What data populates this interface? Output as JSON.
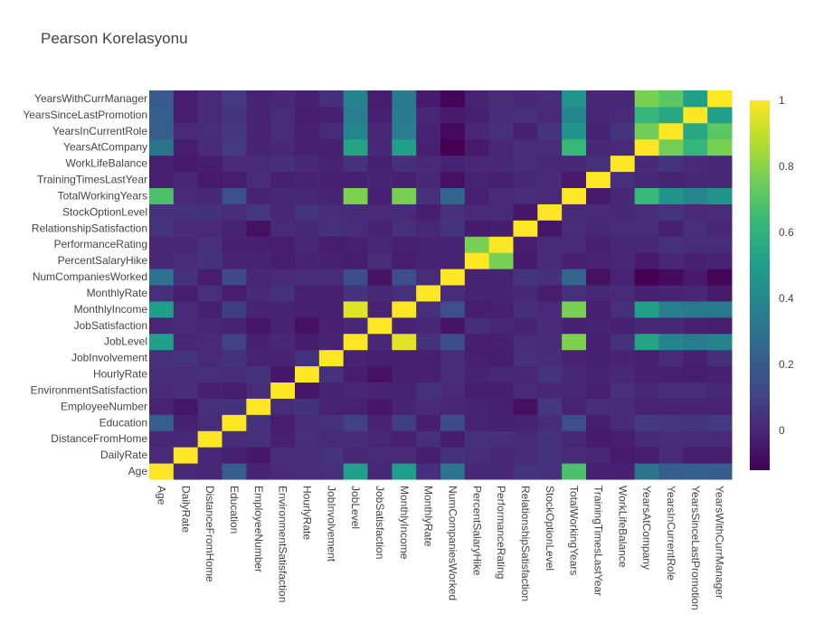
{
  "title": "Pearson Korelasyonu",
  "chart_data": {
    "type": "heatmap",
    "title": "Pearson Korelasyonu",
    "colorscale": "viridis",
    "zmin": -0.12,
    "zmax": 1,
    "colorbar_ticks": [
      "0",
      "0.2",
      "0.4",
      "0.6",
      "0.8",
      "1"
    ],
    "colorbar_tick_values": [
      0,
      0.2,
      0.4,
      0.6,
      0.8,
      1
    ],
    "labels": [
      "Age",
      "DailyRate",
      "DistanceFromHome",
      "Education",
      "EmployeeNumber",
      "EnvironmentSatisfaction",
      "HourlyRate",
      "JobInvolvement",
      "JobLevel",
      "JobSatisfaction",
      "MonthlyIncome",
      "MonthlyRate",
      "NumCompaniesWorked",
      "PercentSalaryHike",
      "PerformanceRating",
      "RelationshipSatisfaction",
      "StockOptionLevel",
      "TotalWorkingYears",
      "TrainingTimesLastYear",
      "WorkLifeBalance",
      "YearsAtCompany",
      "YearsInCurrentRole",
      "YearsSinceLastPromotion",
      "YearsWithCurrManager"
    ],
    "z": [
      [
        1.0,
        0.01,
        0.0,
        0.21,
        -0.01,
        0.01,
        0.02,
        0.03,
        0.51,
        0.0,
        0.5,
        0.03,
        0.3,
        0.0,
        0.0,
        0.05,
        0.04,
        0.68,
        -0.02,
        -0.02,
        0.31,
        0.21,
        0.22,
        0.2
      ],
      [
        0.01,
        1.0,
        -0.0,
        -0.02,
        -0.05,
        0.02,
        0.02,
        0.05,
        0.0,
        0.01,
        0.01,
        -0.03,
        0.04,
        0.02,
        0.0,
        0.01,
        0.04,
        0.01,
        0.0,
        -0.04,
        -0.03,
        0.01,
        -0.03,
        -0.03
      ],
      [
        0.0,
        -0.0,
        1.0,
        0.02,
        0.03,
        -0.02,
        0.03,
        0.01,
        0.01,
        -0.0,
        -0.02,
        0.03,
        -0.03,
        0.04,
        0.03,
        0.01,
        0.04,
        0.0,
        -0.04,
        -0.03,
        0.01,
        0.02,
        0.01,
        0.01
      ],
      [
        0.21,
        -0.02,
        0.02,
        1.0,
        0.04,
        -0.03,
        0.02,
        0.04,
        0.1,
        -0.01,
        0.09,
        -0.03,
        0.13,
        -0.01,
        -0.02,
        -0.01,
        0.02,
        0.15,
        -0.03,
        0.01,
        0.07,
        0.06,
        0.05,
        0.07
      ],
      [
        -0.01,
        -0.05,
        0.03,
        0.04,
        1.0,
        0.02,
        0.04,
        -0.01,
        -0.02,
        -0.05,
        -0.01,
        0.01,
        -0.0,
        -0.01,
        -0.02,
        -0.07,
        0.06,
        -0.01,
        0.02,
        0.01,
        -0.01,
        -0.01,
        -0.01,
        -0.01
      ],
      [
        0.01,
        0.02,
        -0.02,
        -0.03,
        0.02,
        1.0,
        -0.05,
        -0.01,
        0.0,
        -0.01,
        -0.01,
        0.04,
        0.01,
        -0.03,
        -0.03,
        0.01,
        0.0,
        -0.0,
        -0.02,
        0.03,
        0.0,
        0.02,
        0.02,
        -0.0
      ],
      [
        0.02,
        0.02,
        0.03,
        0.02,
        0.04,
        -0.05,
        1.0,
        0.04,
        -0.03,
        -0.07,
        -0.02,
        -0.02,
        0.02,
        -0.01,
        -0.0,
        0.0,
        0.05,
        -0.0,
        -0.01,
        -0.0,
        -0.02,
        -0.02,
        -0.03,
        -0.02
      ],
      [
        0.03,
        0.05,
        0.01,
        0.04,
        -0.01,
        -0.01,
        0.04,
        1.0,
        -0.01,
        -0.02,
        -0.02,
        -0.02,
        0.02,
        -0.02,
        -0.03,
        0.03,
        0.02,
        -0.01,
        -0.02,
        -0.01,
        -0.02,
        0.01,
        -0.02,
        0.03
      ],
      [
        0.51,
        0.0,
        0.01,
        0.1,
        -0.02,
        0.0,
        -0.03,
        -0.01,
        1.0,
        -0.0,
        0.95,
        0.04,
        0.14,
        -0.03,
        -0.02,
        0.02,
        0.01,
        0.78,
        -0.02,
        0.04,
        0.53,
        0.39,
        0.35,
        0.38
      ],
      [
        0.0,
        0.01,
        -0.0,
        -0.01,
        -0.05,
        -0.01,
        -0.07,
        -0.02,
        -0.0,
        1.0,
        -0.01,
        0.0,
        -0.06,
        0.02,
        0.0,
        -0.01,
        0.01,
        -0.02,
        -0.01,
        -0.02,
        -0.0,
        -0.0,
        -0.02,
        -0.03
      ],
      [
        0.5,
        0.01,
        -0.02,
        0.09,
        -0.01,
        -0.01,
        -0.02,
        -0.02,
        0.95,
        -0.01,
        1.0,
        0.03,
        0.15,
        -0.03,
        -0.02,
        0.03,
        0.01,
        0.77,
        -0.02,
        0.03,
        0.51,
        0.36,
        0.34,
        0.34
      ],
      [
        0.03,
        -0.03,
        0.03,
        -0.03,
        0.01,
        0.04,
        -0.02,
        -0.02,
        0.04,
        0.0,
        0.03,
        1.0,
        0.02,
        -0.01,
        -0.01,
        -0.0,
        -0.03,
        0.03,
        0.0,
        0.01,
        -0.02,
        -0.01,
        0.0,
        -0.04
      ],
      [
        0.3,
        0.04,
        -0.03,
        0.13,
        -0.0,
        0.01,
        0.02,
        0.02,
        0.14,
        -0.06,
        0.15,
        0.02,
        1.0,
        -0.01,
        -0.01,
        0.05,
        0.03,
        0.24,
        -0.07,
        -0.01,
        -0.12,
        -0.09,
        -0.04,
        -0.11
      ],
      [
        0.0,
        0.02,
        0.04,
        -0.01,
        -0.01,
        -0.03,
        -0.01,
        -0.02,
        -0.03,
        0.02,
        -0.03,
        -0.01,
        -0.01,
        1.0,
        0.77,
        -0.04,
        0.01,
        -0.02,
        -0.01,
        -0.0,
        -0.04,
        -0.0,
        -0.02,
        -0.01
      ],
      [
        0.0,
        0.0,
        0.03,
        -0.02,
        -0.02,
        -0.03,
        -0.0,
        -0.03,
        -0.02,
        0.0,
        -0.02,
        -0.01,
        -0.01,
        0.77,
        1.0,
        -0.03,
        0.01,
        0.01,
        -0.02,
        0.0,
        0.0,
        0.03,
        0.02,
        0.02
      ],
      [
        0.05,
        0.01,
        0.01,
        -0.01,
        -0.07,
        0.01,
        0.0,
        0.03,
        0.02,
        -0.01,
        0.03,
        -0.0,
        0.05,
        -0.04,
        -0.03,
        1.0,
        -0.05,
        0.02,
        0.0,
        0.02,
        0.02,
        -0.02,
        0.03,
        -0.0
      ],
      [
        0.04,
        0.04,
        0.04,
        0.02,
        0.06,
        0.0,
        0.05,
        0.02,
        0.01,
        0.01,
        0.01,
        -0.03,
        0.03,
        0.01,
        0.01,
        -0.05,
        1.0,
        0.01,
        0.01,
        0.0,
        0.02,
        0.05,
        0.01,
        0.02
      ],
      [
        0.68,
        0.01,
        0.0,
        0.15,
        -0.01,
        -0.0,
        -0.0,
        -0.01,
        0.78,
        -0.02,
        0.77,
        0.03,
        0.24,
        -0.02,
        0.01,
        0.02,
        0.01,
        1.0,
        -0.04,
        0.0,
        0.63,
        0.46,
        0.4,
        0.46
      ],
      [
        -0.02,
        0.0,
        -0.04,
        -0.03,
        0.02,
        -0.02,
        -0.01,
        -0.02,
        -0.02,
        -0.01,
        -0.02,
        0.0,
        -0.07,
        -0.01,
        -0.02,
        0.0,
        0.01,
        -0.04,
        1.0,
        0.03,
        0.0,
        -0.01,
        -0.0,
        -0.0
      ],
      [
        -0.02,
        -0.04,
        -0.03,
        0.01,
        0.01,
        0.03,
        -0.0,
        -0.01,
        0.04,
        -0.02,
        0.03,
        0.01,
        -0.01,
        -0.0,
        0.0,
        0.02,
        0.0,
        0.0,
        0.03,
        1.0,
        0.01,
        0.05,
        0.01,
        0.0
      ],
      [
        0.31,
        -0.03,
        0.01,
        0.07,
        -0.01,
        0.0,
        -0.02,
        -0.02,
        0.53,
        -0.0,
        0.51,
        -0.02,
        -0.12,
        -0.04,
        0.0,
        0.02,
        0.02,
        0.63,
        0.0,
        0.01,
        1.0,
        0.76,
        0.62,
        0.77
      ],
      [
        0.21,
        0.01,
        0.02,
        0.06,
        -0.01,
        0.02,
        -0.02,
        0.01,
        0.39,
        -0.0,
        0.36,
        -0.01,
        -0.09,
        -0.0,
        0.03,
        -0.02,
        0.05,
        0.46,
        -0.01,
        0.05,
        0.76,
        1.0,
        0.55,
        0.71
      ],
      [
        0.22,
        -0.03,
        0.01,
        0.05,
        -0.01,
        0.02,
        -0.03,
        -0.02,
        0.35,
        -0.02,
        0.34,
        0.0,
        -0.04,
        -0.02,
        0.02,
        0.03,
        0.01,
        0.4,
        -0.0,
        0.01,
        0.62,
        0.55,
        1.0,
        0.51
      ],
      [
        0.2,
        -0.03,
        0.01,
        0.07,
        -0.01,
        -0.0,
        -0.02,
        0.03,
        0.38,
        -0.03,
        0.34,
        -0.04,
        -0.11,
        -0.01,
        0.02,
        -0.0,
        0.02,
        0.46,
        -0.0,
        0.0,
        0.77,
        0.71,
        0.51,
        1.0
      ]
    ]
  }
}
